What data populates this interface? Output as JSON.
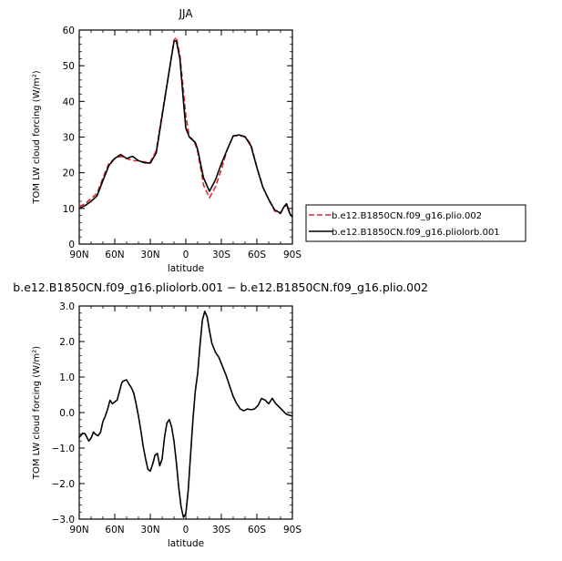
{
  "chart_data": [
    {
      "type": "line",
      "title": "JJA",
      "xlabel": "latitude",
      "ylabel": "TOM LW cloud forcing (W/m²)",
      "x_ticks": [
        "90N",
        "60N",
        "30N",
        "0",
        "30S",
        "60S",
        "90S"
      ],
      "y_ticks": [
        "0",
        "10",
        "20",
        "30",
        "40",
        "50",
        "60"
      ],
      "xlim": [
        90,
        -90
      ],
      "ylim": [
        0,
        60
      ],
      "legend_position": "right",
      "x": [
        90,
        85,
        80,
        75,
        70,
        65,
        60,
        55,
        50,
        45,
        40,
        35,
        30,
        25,
        20,
        15,
        10,
        8,
        5,
        2,
        0,
        -3,
        -5,
        -8,
        -10,
        -15,
        -20,
        -25,
        -30,
        -35,
        -40,
        -45,
        -50,
        -55,
        -60,
        -65,
        -70,
        -75,
        -80,
        -83,
        -85,
        -88,
        -90
      ],
      "series": [
        {
          "name": "b.e12.B1850CN.f09_g16.plio.002",
          "color": "#e0262b",
          "dash": "dashed",
          "values": [
            10.5,
            11.3,
            12.8,
            14.2,
            18.5,
            22.6,
            24.0,
            24.6,
            24.0,
            23.4,
            23.4,
            23.0,
            23.0,
            26.2,
            36.5,
            46.5,
            57.2,
            58.0,
            53.0,
            43.0,
            36.0,
            30.0,
            29.6,
            28.0,
            26.0,
            16.5,
            13.0,
            16.0,
            21.0,
            26.5,
            30.3,
            30.4,
            30.1,
            28.0,
            21.5,
            16.0,
            12.5,
            9.3,
            8.5,
            10.5,
            10.8,
            8.4,
            7.6
          ]
        },
        {
          "name": "b.e12.B1850CN.f09_g16.pliolorb.001",
          "color": "#000000",
          "dash": "solid",
          "values": [
            10.0,
            10.8,
            12.0,
            13.5,
            17.8,
            22.0,
            24.0,
            25.1,
            24.0,
            24.6,
            23.4,
            22.8,
            22.7,
            25.5,
            36.0,
            46.5,
            56.8,
            57.0,
            52.0,
            40.0,
            32.5,
            30.0,
            29.4,
            28.5,
            26.5,
            18.5,
            14.8,
            18.0,
            22.5,
            26.5,
            30.3,
            30.6,
            30.1,
            27.5,
            21.5,
            16.0,
            12.5,
            9.6,
            8.7,
            10.5,
            11.3,
            8.5,
            7.5
          ]
        }
      ]
    },
    {
      "type": "line",
      "title": "b.e12.B1850CN.f09_g16.pliolorb.001 − b.e12.B1850CN.f09_g16.plio.002",
      "xlabel": "latitude",
      "ylabel": "TOM LW cloud forcing (W/m²)",
      "x_ticks": [
        "90N",
        "60N",
        "30N",
        "0",
        "30S",
        "60S",
        "90S"
      ],
      "y_ticks": [
        "−3.0",
        "−2.0",
        "−1.0",
        "0.0",
        "1.0",
        "2.0",
        "3.0"
      ],
      "xlim": [
        90,
        -90
      ],
      "ylim": [
        -3,
        3
      ],
      "x": [
        90,
        87,
        85,
        82,
        80,
        78,
        76,
        74,
        72,
        70,
        68,
        66,
        64,
        62,
        60,
        58,
        56,
        54,
        52,
        50,
        48,
        46,
        44,
        42,
        40,
        38,
        36,
        34,
        32,
        30,
        28,
        26,
        24,
        22,
        20,
        18,
        16,
        14,
        12,
        10,
        8,
        6,
        4,
        2,
        0,
        -2,
        -4,
        -6,
        -8,
        -10,
        -12,
        -14,
        -16,
        -18,
        -20,
        -22,
        -25,
        -28,
        -31,
        -34,
        -37,
        -40,
        -43,
        -46,
        -49,
        -52,
        -55,
        -58,
        -61,
        -64,
        -67,
        -70,
        -73,
        -76,
        -79,
        -82,
        -85,
        -88,
        -90
      ],
      "series": [
        {
          "name": "",
          "color": "#000000",
          "dash": "solid",
          "values": [
            -0.7,
            -0.58,
            -0.6,
            -0.8,
            -0.72,
            -0.55,
            -0.62,
            -0.65,
            -0.55,
            -0.25,
            -0.1,
            0.1,
            0.35,
            0.25,
            0.3,
            0.35,
            0.6,
            0.85,
            0.9,
            0.92,
            0.8,
            0.7,
            0.55,
            0.25,
            -0.1,
            -0.5,
            -0.95,
            -1.3,
            -1.6,
            -1.65,
            -1.45,
            -1.2,
            -1.15,
            -1.5,
            -1.3,
            -0.7,
            -0.3,
            -0.2,
            -0.4,
            -0.8,
            -1.4,
            -2.1,
            -2.65,
            -2.95,
            -2.85,
            -2.2,
            -1.2,
            -0.2,
            0.6,
            1.1,
            1.9,
            2.6,
            2.85,
            2.7,
            2.3,
            1.95,
            1.7,
            1.55,
            1.3,
            1.05,
            0.75,
            0.45,
            0.25,
            0.1,
            0.05,
            0.1,
            0.08,
            0.1,
            0.2,
            0.4,
            0.35,
            0.25,
            0.4,
            0.25,
            0.15,
            0.05,
            -0.05,
            -0.08,
            -0.1
          ]
        }
      ]
    }
  ]
}
